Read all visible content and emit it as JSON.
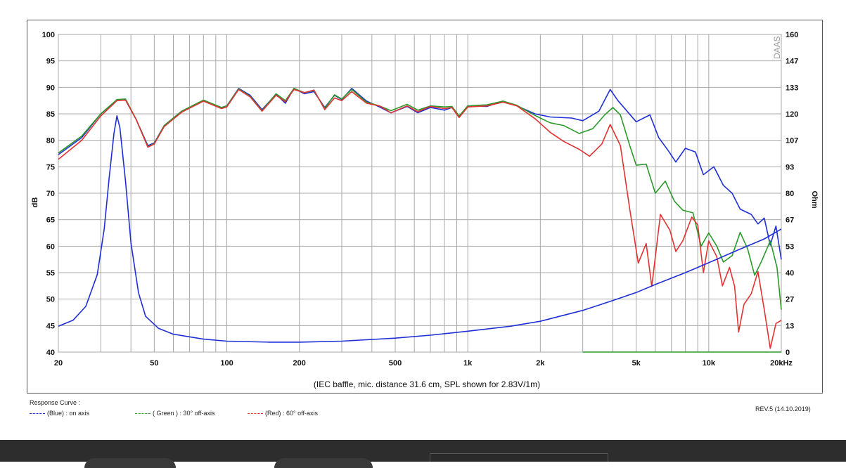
{
  "chart_data": {
    "type": "line",
    "title": "",
    "xlabel": "(IEC baffle, mic. distance 31.6 cm, SPL shown for 2.83V/1m)",
    "ylabel": "dB",
    "y2label": "Ohm",
    "xscale": "log",
    "xlim": [
      20,
      20000
    ],
    "ylim": [
      40,
      100
    ],
    "y2lim": [
      0,
      160
    ],
    "x_tick_labels": [
      "20",
      "50",
      "100",
      "200",
      "500",
      "1k",
      "2k",
      "5k",
      "10k",
      "20kHz"
    ],
    "x_tick_values": [
      20,
      50,
      100,
      200,
      500,
      1000,
      2000,
      5000,
      10000,
      20000
    ],
    "y_tick_labels": [
      "40",
      "45",
      "50",
      "55",
      "60",
      "65",
      "70",
      "75",
      "80",
      "85",
      "90",
      "95",
      "100"
    ],
    "y2_tick_labels": [
      "0",
      "13",
      "27",
      "40",
      "53",
      "67",
      "80",
      "93",
      "107",
      "120",
      "133",
      "147",
      "160"
    ],
    "grid": true,
    "watermark": "DAAS",
    "series": [
      {
        "name": "(Blue) : on axis",
        "color": "#1f2fd6",
        "axis": "left",
        "points": [
          [
            20,
            77.3
          ],
          [
            25,
            80.5
          ],
          [
            30,
            85
          ],
          [
            35,
            87.6
          ],
          [
            38,
            87.6
          ],
          [
            42,
            84
          ],
          [
            47,
            79
          ],
          [
            50,
            79.5
          ],
          [
            55,
            82.8
          ],
          [
            65,
            85.5
          ],
          [
            80,
            87.5
          ],
          [
            95,
            86.2
          ],
          [
            100,
            86.5
          ],
          [
            112,
            89.8
          ],
          [
            125,
            88.5
          ],
          [
            140,
            85.8
          ],
          [
            160,
            88.7
          ],
          [
            175,
            87
          ],
          [
            190,
            89.8
          ],
          [
            210,
            88.8
          ],
          [
            230,
            89.2
          ],
          [
            255,
            86.2
          ],
          [
            280,
            88.5
          ],
          [
            300,
            87.7
          ],
          [
            330,
            89.8
          ],
          [
            380,
            87.4
          ],
          [
            430,
            86.3
          ],
          [
            480,
            85.2
          ],
          [
            560,
            86.4
          ],
          [
            620,
            85.2
          ],
          [
            700,
            86.2
          ],
          [
            800,
            85.7
          ],
          [
            860,
            86.2
          ],
          [
            920,
            84.5
          ],
          [
            1000,
            86.5
          ],
          [
            1200,
            86.4
          ],
          [
            1400,
            87.4
          ],
          [
            1600,
            86.5
          ],
          [
            1900,
            85
          ],
          [
            2200,
            84.4
          ],
          [
            2700,
            84.2
          ],
          [
            3000,
            83.7
          ],
          [
            3500,
            85.5
          ],
          [
            3900,
            89.6
          ],
          [
            4200,
            87.5
          ],
          [
            5000,
            83.5
          ],
          [
            5700,
            84.8
          ],
          [
            6200,
            80.5
          ],
          [
            6800,
            78
          ],
          [
            7300,
            75.9
          ],
          [
            8000,
            78.5
          ],
          [
            8800,
            77.8
          ],
          [
            9500,
            73.5
          ],
          [
            10500,
            75
          ],
          [
            11500,
            71.5
          ],
          [
            12500,
            70
          ],
          [
            13500,
            67
          ],
          [
            15000,
            66
          ],
          [
            16000,
            64.2
          ],
          [
            17000,
            65.3
          ],
          [
            18000,
            60.2
          ],
          [
            19000,
            63.8
          ],
          [
            20000,
            57.5
          ]
        ]
      },
      {
        "name": "( Green ) : 30° off-axis",
        "color": "#2a9a2a",
        "axis": "left",
        "points": [
          [
            20,
            77.6
          ],
          [
            25,
            80.8
          ],
          [
            30,
            85
          ],
          [
            35,
            87.7
          ],
          [
            38,
            87.8
          ],
          [
            42,
            84
          ],
          [
            47,
            78.8
          ],
          [
            50,
            79.4
          ],
          [
            55,
            82.8
          ],
          [
            65,
            85.5
          ],
          [
            80,
            87.6
          ],
          [
            95,
            86.2
          ],
          [
            100,
            86.5
          ],
          [
            112,
            89.7
          ],
          [
            125,
            88.3
          ],
          [
            140,
            85.6
          ],
          [
            160,
            88.8
          ],
          [
            175,
            87.5
          ],
          [
            190,
            89.8
          ],
          [
            210,
            89
          ],
          [
            230,
            89.4
          ],
          [
            255,
            86
          ],
          [
            280,
            88.6
          ],
          [
            300,
            87.8
          ],
          [
            330,
            89.6
          ],
          [
            380,
            87.2
          ],
          [
            430,
            86.5
          ],
          [
            480,
            85.6
          ],
          [
            560,
            86.8
          ],
          [
            620,
            85.7
          ],
          [
            700,
            86.5
          ],
          [
            800,
            86.3
          ],
          [
            860,
            86.4
          ],
          [
            920,
            84.6
          ],
          [
            1000,
            86.5
          ],
          [
            1200,
            86.7
          ],
          [
            1400,
            87.4
          ],
          [
            1600,
            86.6
          ],
          [
            1900,
            84.7
          ],
          [
            2200,
            83.3
          ],
          [
            2500,
            82.8
          ],
          [
            2900,
            81.3
          ],
          [
            3300,
            82.2
          ],
          [
            3700,
            84.8
          ],
          [
            4000,
            86.2
          ],
          [
            4300,
            84.8
          ],
          [
            4700,
            79
          ],
          [
            5000,
            75.3
          ],
          [
            5500,
            75.5
          ],
          [
            6000,
            70
          ],
          [
            6600,
            72.3
          ],
          [
            7200,
            68.5
          ],
          [
            7800,
            66.8
          ],
          [
            8600,
            66.3
          ],
          [
            9300,
            60
          ],
          [
            10000,
            62.5
          ],
          [
            10800,
            60
          ],
          [
            11500,
            57
          ],
          [
            12500,
            58.2
          ],
          [
            13500,
            62.6
          ],
          [
            14500,
            59.5
          ],
          [
            15500,
            54.5
          ],
          [
            16500,
            57
          ],
          [
            18000,
            61
          ],
          [
            19200,
            56
          ],
          [
            20000,
            48
          ]
        ]
      },
      {
        "name": "(Red) : 60° off-axis",
        "color": "#e23232",
        "axis": "left",
        "points": [
          [
            20,
            76.4
          ],
          [
            25,
            80
          ],
          [
            30,
            84.6
          ],
          [
            35,
            87.5
          ],
          [
            38,
            87.6
          ],
          [
            42,
            84
          ],
          [
            47,
            78.7
          ],
          [
            50,
            79.3
          ],
          [
            55,
            82.6
          ],
          [
            65,
            85.3
          ],
          [
            80,
            87.4
          ],
          [
            95,
            86
          ],
          [
            100,
            86.3
          ],
          [
            112,
            89.6
          ],
          [
            125,
            88.2
          ],
          [
            140,
            85.5
          ],
          [
            160,
            88.5
          ],
          [
            175,
            87.3
          ],
          [
            190,
            89.6
          ],
          [
            210,
            89
          ],
          [
            230,
            89.5
          ],
          [
            255,
            85.8
          ],
          [
            280,
            88
          ],
          [
            300,
            87.5
          ],
          [
            330,
            89.2
          ],
          [
            380,
            87
          ],
          [
            430,
            86.5
          ],
          [
            480,
            85.2
          ],
          [
            560,
            86.5
          ],
          [
            620,
            85.4
          ],
          [
            700,
            86.4
          ],
          [
            800,
            86
          ],
          [
            860,
            86.2
          ],
          [
            920,
            84.3
          ],
          [
            1000,
            86.3
          ],
          [
            1200,
            86.5
          ],
          [
            1400,
            87.2
          ],
          [
            1600,
            86.5
          ],
          [
            1900,
            84.1
          ],
          [
            2200,
            81.5
          ],
          [
            2500,
            79.8
          ],
          [
            2900,
            78.3
          ],
          [
            3200,
            77
          ],
          [
            3600,
            79.3
          ],
          [
            3900,
            83
          ],
          [
            4300,
            79
          ],
          [
            4700,
            67
          ],
          [
            5100,
            56.8
          ],
          [
            5500,
            60.5
          ],
          [
            5800,
            52.4
          ],
          [
            6300,
            66
          ],
          [
            6900,
            63
          ],
          [
            7300,
            59
          ],
          [
            7800,
            61
          ],
          [
            8500,
            65.5
          ],
          [
            9000,
            64
          ],
          [
            9500,
            55
          ],
          [
            10000,
            61
          ],
          [
            10800,
            58
          ],
          [
            11400,
            52.5
          ],
          [
            12200,
            56
          ],
          [
            12800,
            52.4
          ],
          [
            13300,
            43.8
          ],
          [
            14000,
            49
          ],
          [
            15000,
            51
          ],
          [
            16000,
            55.2
          ],
          [
            17000,
            48
          ],
          [
            18000,
            40.7
          ],
          [
            19000,
            45.4
          ],
          [
            20000,
            46
          ]
        ]
      },
      {
        "name": "Impedance",
        "color": "#1f2fd6",
        "axis": "right",
        "points": [
          [
            20,
            13
          ],
          [
            23,
            16
          ],
          [
            26,
            23
          ],
          [
            29,
            39
          ],
          [
            31,
            62
          ],
          [
            32.5,
            88
          ],
          [
            34,
            110
          ],
          [
            35,
            119
          ],
          [
            36,
            113
          ],
          [
            38,
            86
          ],
          [
            40,
            55
          ],
          [
            43,
            30
          ],
          [
            46,
            18
          ],
          [
            52,
            12
          ],
          [
            60,
            9
          ],
          [
            80,
            6.5
          ],
          [
            100,
            5.5
          ],
          [
            150,
            5
          ],
          [
            200,
            5
          ],
          [
            300,
            5.5
          ],
          [
            500,
            7
          ],
          [
            700,
            8.5
          ],
          [
            1000,
            10.5
          ],
          [
            1500,
            13
          ],
          [
            2000,
            15.5
          ],
          [
            3000,
            21
          ],
          [
            4000,
            26
          ],
          [
            5000,
            30
          ],
          [
            6000,
            34
          ],
          [
            8000,
            40
          ],
          [
            10000,
            45
          ],
          [
            13000,
            51
          ],
          [
            17000,
            57
          ],
          [
            20000,
            62
          ]
        ]
      },
      {
        "name": "Reference",
        "color": "#2a9a2a",
        "axis": "right",
        "points": [
          [
            3000,
            0
          ],
          [
            20000,
            0
          ]
        ]
      }
    ]
  },
  "legend": {
    "heading": "Response Curve :",
    "items": [
      {
        "label": "(Blue)  : on axis",
        "color": "#1f2fd6"
      },
      {
        "label": "( Green ) : 30° off-axis",
        "color": "#2a9a2a"
      },
      {
        "label": "(Red) : 60° off-axis",
        "color": "#e23232"
      }
    ]
  },
  "revision": "REV.5 (14.10.2019)"
}
